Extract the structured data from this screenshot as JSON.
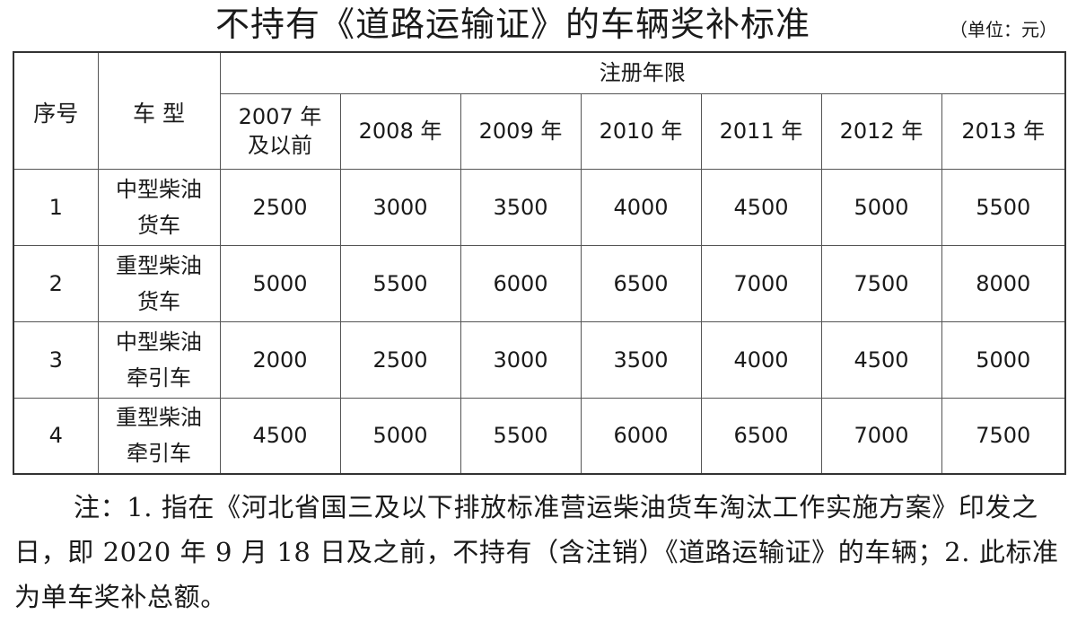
{
  "title": "不持有《道路运输证》的车辆奖补标准",
  "unit": "（单位：元）",
  "table": {
    "header_seq": "序号",
    "header_type": "车 型",
    "header_years_group": "注册年限",
    "years": [
      "2007 年\n及以前",
      "2008 年",
      "2009 年",
      "2010 年",
      "2011 年",
      "2012 年",
      "2013 年"
    ],
    "rows": [
      {
        "seq": "1",
        "type": "中型柴油\n货车",
        "values": [
          "2500",
          "3000",
          "3500",
          "4000",
          "4500",
          "5000",
          "5500"
        ]
      },
      {
        "seq": "2",
        "type": "重型柴油\n货车",
        "values": [
          "5000",
          "5500",
          "6000",
          "6500",
          "7000",
          "7500",
          "8000"
        ]
      },
      {
        "seq": "3",
        "type": "中型柴油\n牵引车",
        "values": [
          "2000",
          "2500",
          "3000",
          "3500",
          "4000",
          "4500",
          "5000"
        ]
      },
      {
        "seq": "4",
        "type": "重型柴油\n牵引车",
        "values": [
          "4500",
          "5000",
          "5500",
          "6000",
          "6500",
          "7000",
          "7500"
        ]
      }
    ]
  },
  "note": "注：1. 指在《河北省国三及以下排放标准营运柴油货车淘汰工作实施方案》印发之日，即 2020 年 9 月 18 日及之前，不持有（含注销）《道路运输证》的车辆；2. 此标准为单车奖补总额。"
}
